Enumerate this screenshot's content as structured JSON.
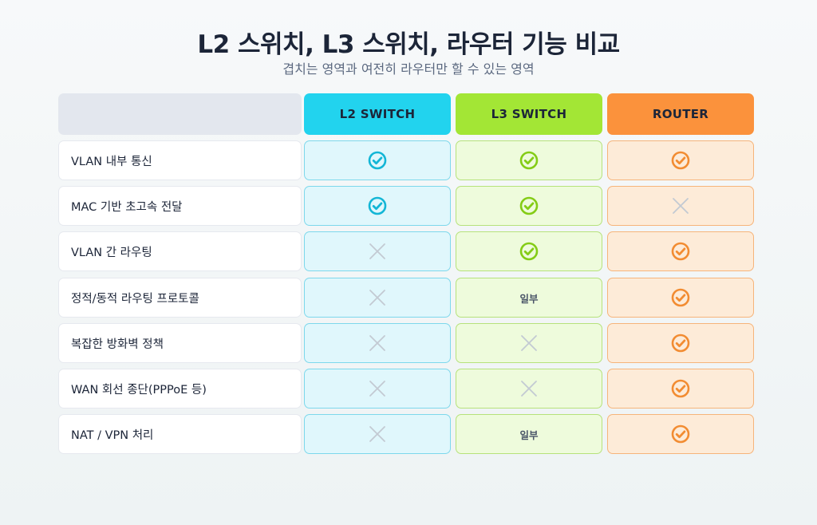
{
  "title": "L2 스위치, L3 스위치, 라우터 기능 비교",
  "subtitle": "겹치는 영역과 여전히 라우터만 할 수 있는 영역",
  "columns": [
    "L2 SWITCH",
    "L3 SWITCH",
    "ROUTER"
  ],
  "column_colors": {
    "l2": {
      "accent": "#22d3ee",
      "cell_bg": "#e0f7fc",
      "border": "#7dd8ec",
      "icon": "#13b6d6"
    },
    "l3": {
      "accent": "#a3e635",
      "cell_bg": "#eefbdc",
      "border": "#b6e27b",
      "icon": "#84cc16"
    },
    "router": {
      "accent": "#fb923c",
      "cell_bg": "#fdebd8",
      "border": "#f6b47a",
      "icon": "#f28c32"
    }
  },
  "symbols": {
    "yes": "check-circle-icon",
    "no": "cross-icon",
    "partial_label": "일부"
  },
  "rows": [
    {
      "feature": "VLAN 내부 통신",
      "l2": "yes",
      "l3": "yes",
      "router": "yes"
    },
    {
      "feature": "MAC 기반 초고속 전달",
      "l2": "yes",
      "l3": "yes",
      "router": "no"
    },
    {
      "feature": "VLAN 간 라우팅",
      "l2": "no",
      "l3": "yes",
      "router": "yes"
    },
    {
      "feature": "정적/동적 라우팅 프로토콜",
      "l2": "no",
      "l3": "partial",
      "router": "yes"
    },
    {
      "feature": "복잡한 방화벽 정책",
      "l2": "no",
      "l3": "no",
      "router": "yes"
    },
    {
      "feature": "WAN 회선 종단(PPPoE 등)",
      "l2": "no",
      "l3": "no",
      "router": "yes"
    },
    {
      "feature": "NAT / VPN 처리",
      "l2": "no",
      "l3": "partial",
      "router": "yes"
    }
  ]
}
